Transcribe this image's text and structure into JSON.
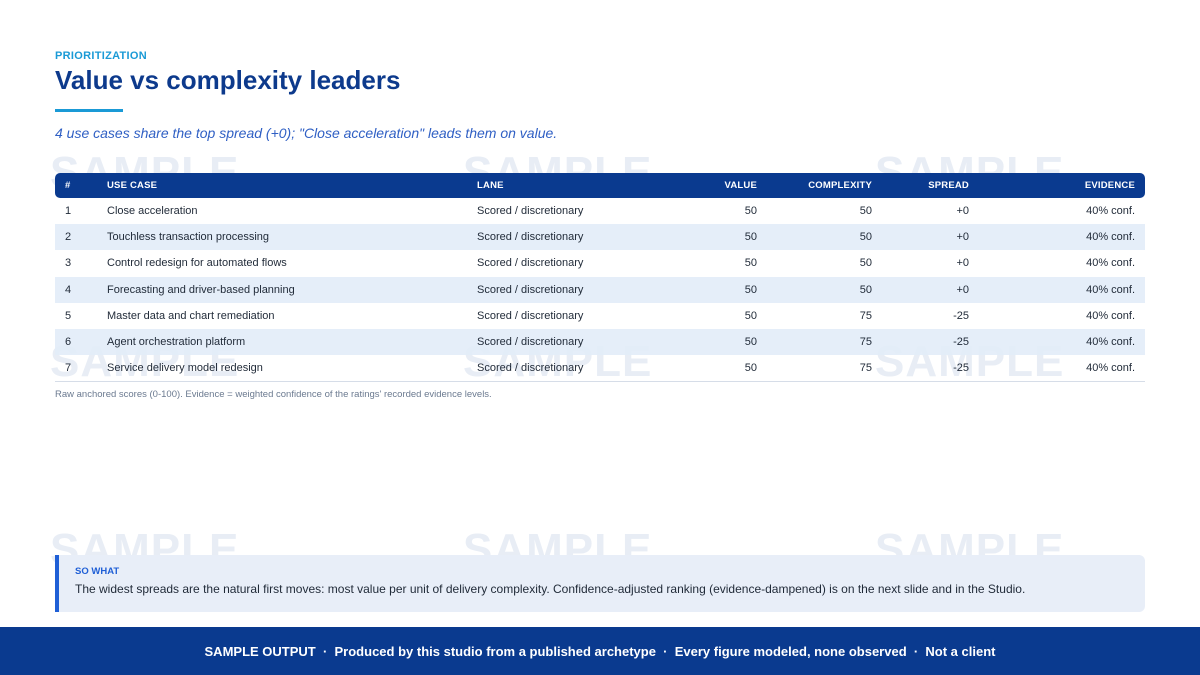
{
  "watermark_text": "SAMPLE",
  "header": {
    "eyebrow": "PRIORITIZATION",
    "title": "Value vs complexity leaders",
    "subtitle": "4 use cases share the top spread (+0); \"Close acceleration\" leads them on value."
  },
  "table": {
    "columns": [
      "#",
      "USE CASE",
      "LANE",
      "VALUE",
      "COMPLEXITY",
      "SPREAD",
      "EVIDENCE"
    ],
    "rows": [
      [
        "1",
        "Close acceleration",
        "Scored / discretionary",
        "50",
        "50",
        "+0",
        "40% conf."
      ],
      [
        "2",
        "Touchless transaction processing",
        "Scored / discretionary",
        "50",
        "50",
        "+0",
        "40% conf."
      ],
      [
        "3",
        "Control redesign for automated flows",
        "Scored / discretionary",
        "50",
        "50",
        "+0",
        "40% conf."
      ],
      [
        "4",
        "Forecasting and driver-based planning",
        "Scored / discretionary",
        "50",
        "50",
        "+0",
        "40% conf."
      ],
      [
        "5",
        "Master data and chart remediation",
        "Scored / discretionary",
        "50",
        "75",
        "-25",
        "40% conf."
      ],
      [
        "6",
        "Agent orchestration platform",
        "Scored / discretionary",
        "50",
        "75",
        "-25",
        "40% conf."
      ],
      [
        "7",
        "Service delivery model redesign",
        "Scored / discretionary",
        "50",
        "75",
        "-25",
        "40% conf."
      ]
    ],
    "footnote": "Raw anchored scores (0-100). Evidence = weighted confidence of the ratings' recorded evidence levels."
  },
  "so_what": {
    "label": "SO WHAT",
    "text": "The widest spreads are the natural first moves: most value per unit of delivery complexity. Confidence-adjusted ranking (evidence-dampened) is on the next slide and in the Studio."
  },
  "footer": {
    "text": "SAMPLE OUTPUT  ·  Produced by this studio from a published archetype  ·  Every figure modeled, none observed  ·  Not a client"
  },
  "colors": {
    "primary": "#0a3a8f",
    "accent": "#1a9ad6",
    "highlight": "#1f5fd6"
  }
}
